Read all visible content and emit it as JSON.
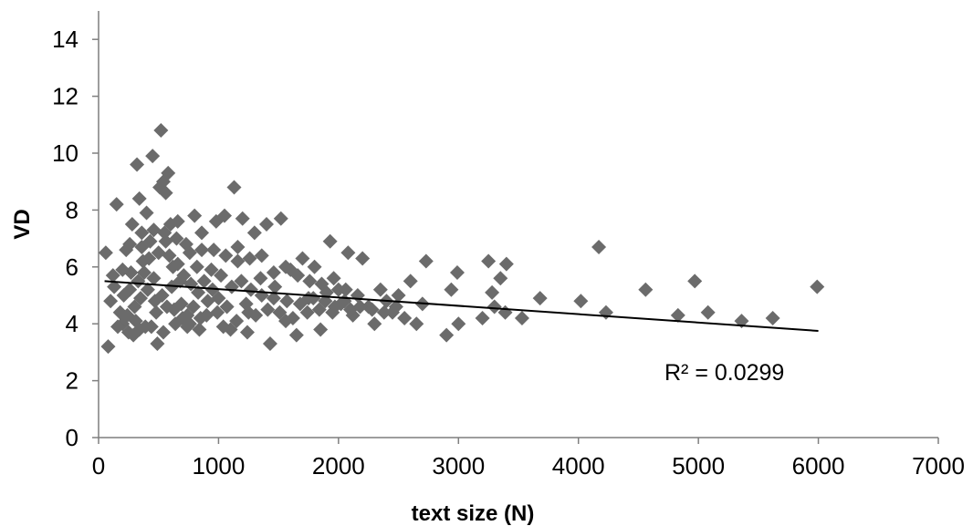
{
  "chart_data": {
    "type": "scatter",
    "title": "",
    "xlabel": "text size (N)",
    "ylabel": "VD",
    "xlim": [
      0,
      7000
    ],
    "ylim": [
      0,
      15
    ],
    "xticks": [
      0,
      1000,
      2000,
      3000,
      4000,
      5000,
      6000,
      7000
    ],
    "yticks": [
      0,
      2,
      4,
      6,
      8,
      10,
      12,
      14
    ],
    "grid": false,
    "legend": "none",
    "marker_color": "#6b6b6b",
    "marker_shape": "diamond",
    "trendline": {
      "type": "linear",
      "x": [
        50,
        6000
      ],
      "y": [
        5.5,
        3.75
      ],
      "color": "#000000",
      "label": "R² = 0.0299"
    },
    "points": [
      [
        60,
        6.5
      ],
      [
        80,
        3.2
      ],
      [
        120,
        5.7
      ],
      [
        150,
        8.2
      ],
      [
        180,
        4.4
      ],
      [
        200,
        4.0
      ],
      [
        230,
        6.6
      ],
      [
        260,
        5.2
      ],
      [
        280,
        7.5
      ],
      [
        300,
        4.6
      ],
      [
        320,
        9.6
      ],
      [
        340,
        8.4
      ],
      [
        360,
        7.2
      ],
      [
        380,
        5.8
      ],
      [
        400,
        7.9
      ],
      [
        420,
        6.3
      ],
      [
        450,
        9.9
      ],
      [
        470,
        4.8
      ],
      [
        490,
        3.3
      ],
      [
        510,
        8.8
      ],
      [
        520,
        10.8
      ],
      [
        540,
        9.0
      ],
      [
        560,
        8.6
      ],
      [
        580,
        9.3
      ],
      [
        600,
        7.5
      ],
      [
        620,
        6.0
      ],
      [
        650,
        7.0
      ],
      [
        680,
        5.5
      ],
      [
        700,
        4.2
      ],
      [
        730,
        6.8
      ],
      [
        760,
        4.0
      ],
      [
        800,
        7.8
      ],
      [
        830,
        5.1
      ],
      [
        860,
        6.6
      ],
      [
        900,
        4.3
      ],
      [
        940,
        5.9
      ],
      [
        980,
        7.6
      ],
      [
        1000,
        4.9
      ],
      [
        1050,
        7.8
      ],
      [
        1100,
        3.8
      ],
      [
        1130,
        8.8
      ],
      [
        1160,
        6.2
      ],
      [
        1200,
        7.7
      ],
      [
        1250,
        4.4
      ],
      [
        1300,
        7.2
      ],
      [
        1350,
        5.6
      ],
      [
        1400,
        7.5
      ],
      [
        1430,
        3.3
      ],
      [
        1470,
        5.3
      ],
      [
        1520,
        7.7
      ],
      [
        1560,
        4.1
      ],
      [
        1600,
        5.9
      ],
      [
        1650,
        3.6
      ],
      [
        1700,
        6.3
      ],
      [
        1750,
        4.9
      ],
      [
        1800,
        6.0
      ],
      [
        1850,
        3.8
      ],
      [
        1900,
        5.1
      ],
      [
        1930,
        6.9
      ],
      [
        1970,
        4.6
      ],
      [
        2000,
        5.2
      ],
      [
        2050,
        4.8
      ],
      [
        2080,
        6.5
      ],
      [
        2120,
        4.3
      ],
      [
        2160,
        5.0
      ],
      [
        2200,
        6.3
      ],
      [
        2250,
        4.6
      ],
      [
        2300,
        4.0
      ],
      [
        2350,
        5.2
      ],
      [
        2400,
        4.8
      ],
      [
        2450,
        4.4
      ],
      [
        2500,
        5.0
      ],
      [
        2550,
        4.2
      ],
      [
        2600,
        5.5
      ],
      [
        2650,
        4.0
      ],
      [
        2700,
        4.7
      ],
      [
        2730,
        6.2
      ],
      [
        2900,
        3.6
      ],
      [
        2940,
        5.2
      ],
      [
        2990,
        5.8
      ],
      [
        3000,
        4.0
      ],
      [
        3200,
        4.2
      ],
      [
        3250,
        6.2
      ],
      [
        3280,
        5.1
      ],
      [
        3300,
        4.6
      ],
      [
        3350,
        5.6
      ],
      [
        3390,
        4.4
      ],
      [
        3400,
        6.1
      ],
      [
        3530,
        4.2
      ],
      [
        3680,
        4.9
      ],
      [
        4020,
        4.8
      ],
      [
        4170,
        6.7
      ],
      [
        4230,
        4.4
      ],
      [
        4560,
        5.2
      ],
      [
        4830,
        4.3
      ],
      [
        4970,
        5.5
      ],
      [
        5080,
        4.4
      ],
      [
        5360,
        4.1
      ],
      [
        5620,
        4.2
      ],
      [
        5990,
        5.3
      ],
      [
        100,
        4.8
      ],
      [
        130,
        5.3
      ],
      [
        160,
        3.9
      ],
      [
        210,
        5.0
      ],
      [
        240,
        4.3
      ],
      [
        270,
        5.8
      ],
      [
        310,
        4.1
      ],
      [
        330,
        5.5
      ],
      [
        350,
        4.9
      ],
      [
        370,
        6.2
      ],
      [
        390,
        3.9
      ],
      [
        410,
        5.2
      ],
      [
        430,
        6.9
      ],
      [
        460,
        5.6
      ],
      [
        480,
        4.4
      ],
      [
        500,
        6.5
      ],
      [
        530,
        5.0
      ],
      [
        550,
        7.2
      ],
      [
        570,
        4.6
      ],
      [
        590,
        6.4
      ],
      [
        610,
        5.3
      ],
      [
        630,
        4.5
      ],
      [
        660,
        6.1
      ],
      [
        690,
        4.7
      ],
      [
        710,
        5.7
      ],
      [
        740,
        4.3
      ],
      [
        770,
        5.4
      ],
      [
        790,
        4.6
      ],
      [
        820,
        6.0
      ],
      [
        850,
        4.2
      ],
      [
        880,
        5.5
      ],
      [
        910,
        4.8
      ],
      [
        950,
        5.2
      ],
      [
        990,
        4.4
      ],
      [
        1020,
        5.7
      ],
      [
        1070,
        4.6
      ],
      [
        1110,
        5.3
      ],
      [
        1150,
        4.1
      ],
      [
        1190,
        5.5
      ],
      [
        1230,
        4.7
      ],
      [
        1270,
        5.2
      ],
      [
        1310,
        4.3
      ],
      [
        1360,
        5.0
      ],
      [
        1410,
        4.5
      ],
      [
        1460,
        4.9
      ],
      [
        1510,
        4.4
      ],
      [
        1570,
        4.8
      ],
      [
        1620,
        4.2
      ],
      [
        1680,
        4.7
      ],
      [
        1740,
        4.4
      ],
      [
        1790,
        4.9
      ],
      [
        1840,
        4.5
      ],
      [
        1890,
        4.8
      ],
      [
        1950,
        4.4
      ],
      [
        2020,
        4.7
      ],
      [
        2100,
        4.5
      ],
      [
        2180,
        4.6
      ],
      [
        2280,
        4.5
      ],
      [
        2380,
        4.4
      ],
      [
        2480,
        4.6
      ],
      [
        250,
        3.7
      ],
      [
        290,
        3.6
      ],
      [
        340,
        3.8
      ],
      [
        440,
        3.9
      ],
      [
        540,
        3.7
      ],
      [
        640,
        4.0
      ],
      [
        740,
        3.9
      ],
      [
        840,
        3.8
      ],
      [
        1040,
        3.9
      ],
      [
        1240,
        3.7
      ],
      [
        200,
        5.9
      ],
      [
        260,
        6.8
      ],
      [
        360,
        6.7
      ],
      [
        460,
        7.3
      ],
      [
        560,
        6.9
      ],
      [
        660,
        7.6
      ],
      [
        760,
        6.5
      ],
      [
        860,
        7.2
      ],
      [
        960,
        6.6
      ],
      [
        1060,
        6.4
      ],
      [
        1160,
        6.7
      ],
      [
        1260,
        6.3
      ],
      [
        1360,
        6.4
      ],
      [
        1460,
        5.8
      ],
      [
        1560,
        6.0
      ],
      [
        1660,
        5.7
      ],
      [
        1760,
        5.5
      ],
      [
        1860,
        5.4
      ],
      [
        1960,
        5.6
      ],
      [
        2060,
        5.2
      ]
    ],
    "annotations": [
      "R² = 0.0299"
    ]
  }
}
